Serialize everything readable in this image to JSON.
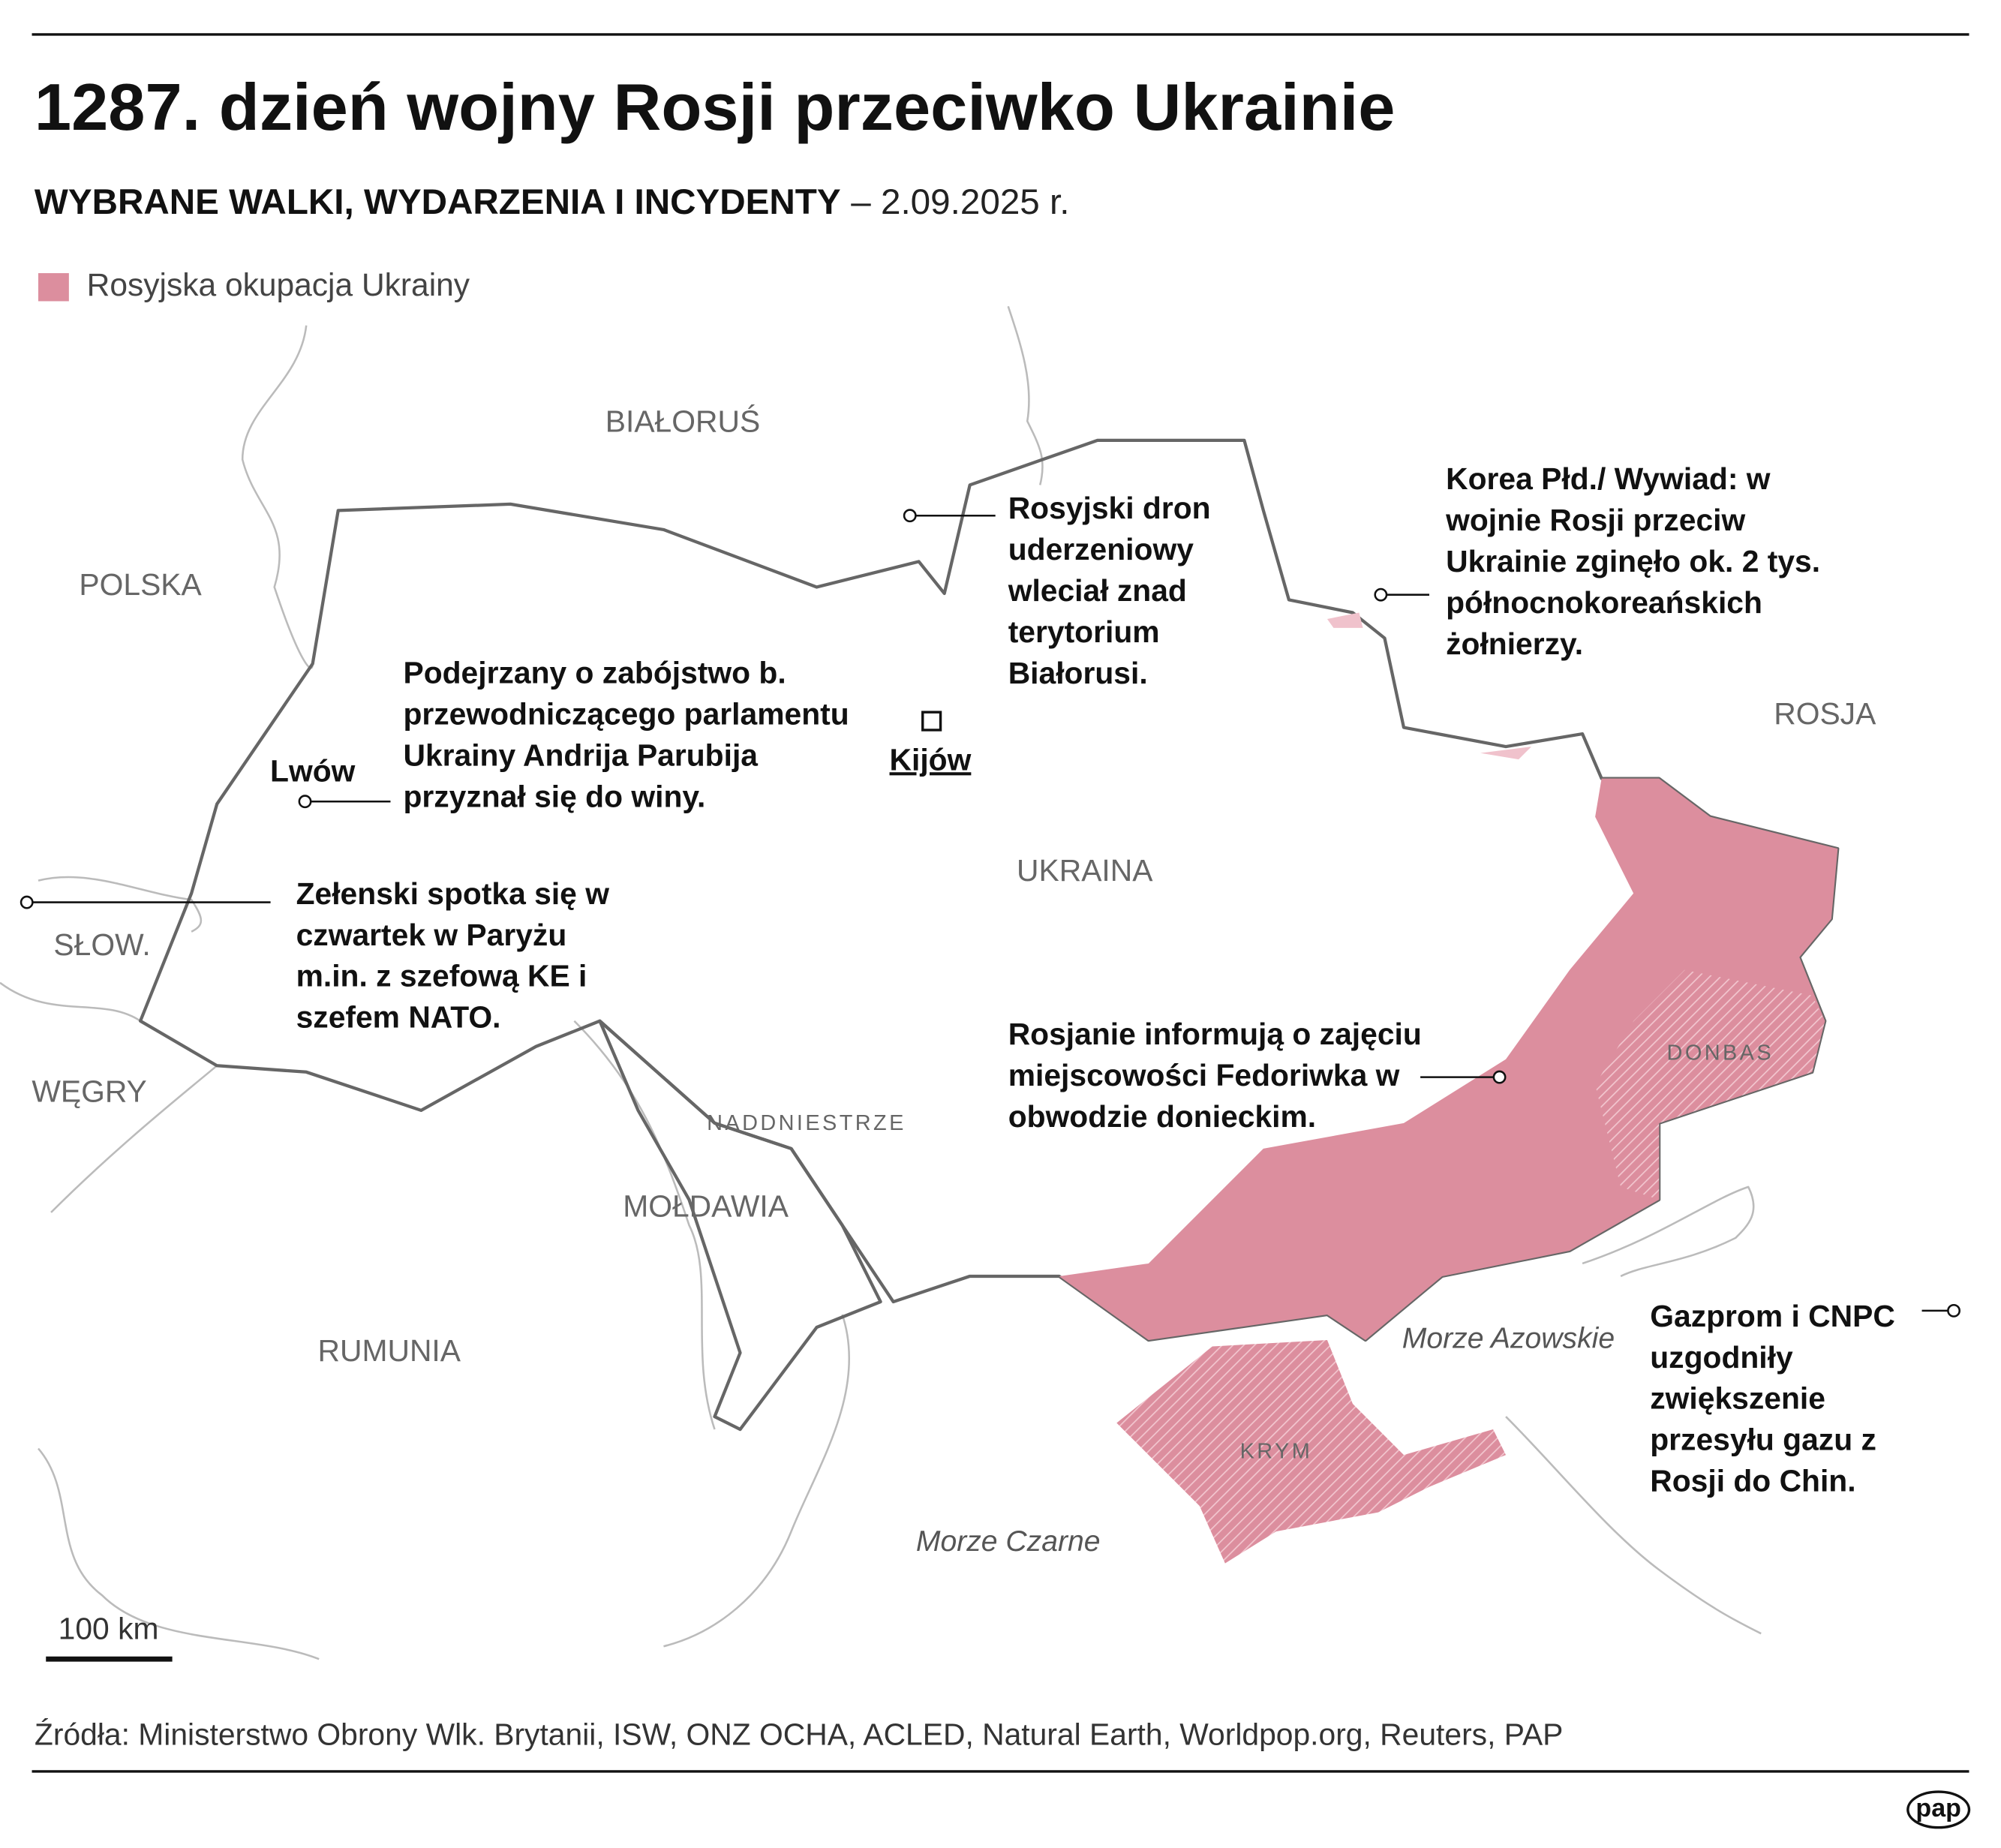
{
  "header": {
    "title": "1287. dzień wojny Rosji przeciwko Ukrainie",
    "subtitle_bold": "WYBRANE WALKI, WYDARZENIA I INCYDENTY",
    "subtitle_date": "– 2.09.2025 r."
  },
  "legend": {
    "label": "Rosyjska okupacja Ukrainy"
  },
  "countries": [
    "BIAŁORUŚ",
    "POLSKA",
    "SŁOW.",
    "WĘGRY",
    "RUMUNIA",
    "MOŁDAWIA",
    "UKRAINA",
    "ROSJA"
  ],
  "regions": [
    "NADDNIESTRZE",
    "DONBAS",
    "KRYM"
  ],
  "seas": [
    "Morze Azowskie",
    "Morze Czarne"
  ],
  "cities": [
    "Lwów",
    "Kijów"
  ],
  "annotations": [
    {
      "lines": [
        "Rosyjski dron",
        "uderzeniowy",
        "wleciał znad",
        "terytorium",
        "Białorusi."
      ]
    },
    {
      "lines": [
        "Korea Płd./ Wywiad: w",
        "wojnie Rosji przeciw",
        "Ukrainie zginęło ok. 2 tys.",
        "północnokoreańskich",
        "żołnierzy."
      ]
    },
    {
      "lines": [
        "Podejrzany o zabójstwo b.",
        "przewodniczącego parlamentu",
        "Ukrainy Andrija Parubija",
        "przyznał się do winy."
      ]
    },
    {
      "lines": [
        "Zełenski spotka się w",
        "czwartek w Paryżu",
        "m.in. z szefową KE i",
        "szefem NATO."
      ]
    },
    {
      "lines": [
        "Rosjanie informują o zajęciu",
        "miejscowości Fedoriwka w",
        "obwodzie donieckim."
      ]
    },
    {
      "lines": [
        "Gazprom i CNPC",
        "uzgodniły",
        "zwiększenie",
        "przesyłu gazu z",
        "Rosji do Chin."
      ]
    }
  ],
  "scale": "100 km",
  "source": "Źródła: Ministerstwo Obrony Wlk. Brytanii, ISW, ONZ OCHA, ACLED, Natural Earth, Worldpop.org, Reuters, PAP",
  "logo": "pap"
}
